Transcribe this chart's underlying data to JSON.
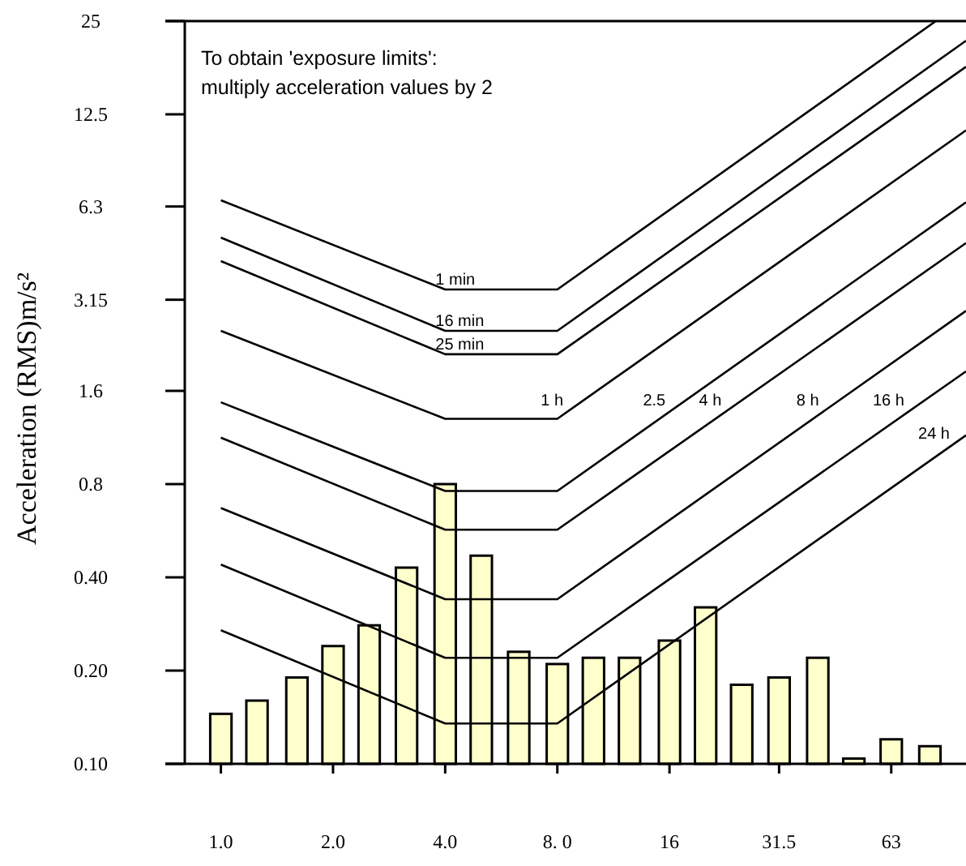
{
  "chart_data": {
    "type": "bar",
    "log": "xy",
    "ylabel": "Acceleration (RMS)m/s²",
    "annotations": [
      "To obtain 'exposure limits':\nmultiply acceleration values by 2"
    ],
    "xlim": [
      0.8,
      100
    ],
    "xticks": [
      {
        "value": 1,
        "label": "1.0"
      },
      {
        "value": 2,
        "label": "2.0"
      },
      {
        "value": 4,
        "label": "4.0"
      },
      {
        "value": 8,
        "label": "8. 0"
      },
      16,
      31.5,
      63
    ],
    "ylim": [
      0.1,
      25
    ],
    "yticks": [
      {
        "value": 0.1,
        "label": "0.10"
      },
      {
        "value": 0.2,
        "label": "0.20"
      },
      {
        "value": 0.4,
        "label": "0.40"
      },
      0.8,
      1.6,
      3.15,
      6.3,
      12.5,
      25
    ],
    "grid": false,
    "series": [
      {
        "color": "#ffffcc",
        "x": [
          1,
          1.25,
          1.6,
          2,
          2.5,
          3.15,
          4,
          5,
          6.3,
          8,
          10,
          12.5,
          16,
          20,
          25,
          31.5,
          40,
          50,
          63,
          80
        ],
        "values": [
          0.145,
          0.16,
          0.19,
          0.24,
          0.28,
          0.43,
          0.8,
          0.47,
          0.23,
          0.21,
          0.22,
          0.22,
          0.25,
          0.32,
          0.18,
          0.19,
          0.22,
          0.104,
          0.12,
          0.114
        ]
      },
      {
        "type": "line",
        "name": "1 min",
        "color": "#000000",
        "x": [
          1,
          4,
          8,
          83
        ],
        "values": [
          6.6,
          3.4,
          3.4,
          25
        ]
      },
      {
        "type": "line",
        "name": "16 min",
        "color": "#000000",
        "x": [
          1,
          4,
          8,
          100
        ],
        "values": [
          5.0,
          2.5,
          2.5,
          21.6
        ]
      },
      {
        "type": "line",
        "name": "25 min",
        "color": "#000000",
        "x": [
          1,
          4,
          8,
          100
        ],
        "values": [
          4.2,
          2.1,
          2.1,
          17.8
        ]
      },
      {
        "type": "line",
        "name": "1 h",
        "color": "#000000",
        "x": [
          1,
          4,
          8,
          100
        ],
        "values": [
          2.5,
          1.3,
          1.3,
          11.1
        ]
      },
      {
        "type": "line",
        "name": "2.5",
        "color": "#000000",
        "x": [
          1,
          4,
          8,
          100
        ],
        "values": [
          1.47,
          0.76,
          0.76,
          6.5
        ]
      },
      {
        "type": "line",
        "name": "4 h",
        "color": "#000000",
        "x": [
          1,
          4,
          8,
          100
        ],
        "values": [
          1.13,
          0.57,
          0.57,
          4.8
        ]
      },
      {
        "type": "line",
        "name": "8 h",
        "color": "#000000",
        "x": [
          1,
          4,
          8,
          100
        ],
        "values": [
          0.67,
          0.34,
          0.34,
          2.9
        ]
      },
      {
        "type": "line",
        "name": "16 h",
        "color": "#000000",
        "x": [
          1,
          4,
          8,
          100
        ],
        "values": [
          0.44,
          0.22,
          0.22,
          1.85
        ]
      },
      {
        "type": "line",
        "name": "24 h",
        "color": "#000000",
        "x": [
          1,
          4,
          8,
          100
        ],
        "values": [
          0.27,
          0.135,
          0.135,
          1.15
        ]
      }
    ]
  }
}
